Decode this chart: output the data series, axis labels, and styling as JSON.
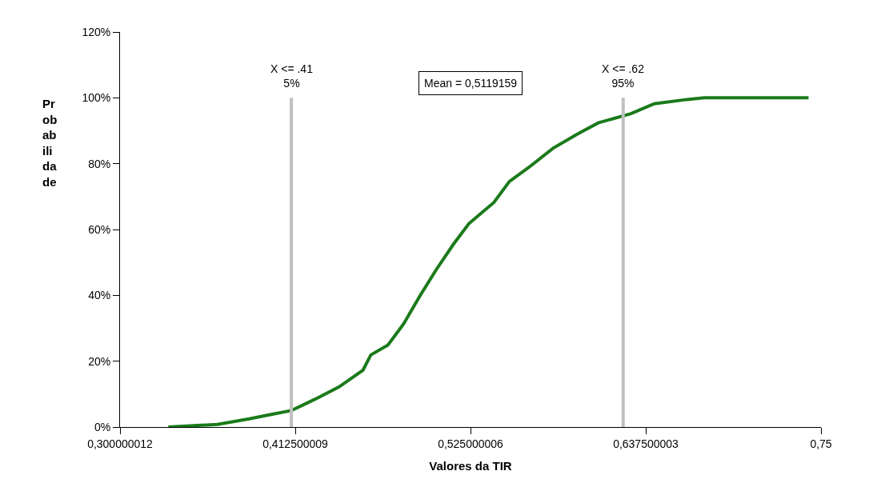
{
  "chart_data": {
    "type": "line",
    "xlabel": "Valores da TIR",
    "ylabel": "Pr\nob\nab\nili\nda\nde",
    "x": [
      0.331,
      0.3625,
      0.383,
      0.399,
      0.41,
      0.425,
      0.4406,
      0.456,
      0.461,
      0.472,
      0.482,
      0.493,
      0.503,
      0.514,
      0.524,
      0.54,
      0.55,
      0.5625,
      0.578,
      0.594,
      0.607,
      0.628,
      0.643,
      0.664,
      0.675,
      0.742
    ],
    "series": [
      {
        "color": "#1a7a1a",
        "values": [
          0,
          0.008,
          0.025,
          0.04,
          0.05,
          0.084,
          0.122,
          0.173,
          0.219,
          0.249,
          0.313,
          0.402,
          0.478,
          0.555,
          0.618,
          0.682,
          0.746,
          0.789,
          0.847,
          0.891,
          0.924,
          0.952,
          0.982,
          0.995,
          1.0,
          1.0
        ]
      }
    ],
    "xlim": [
      0.300000012,
      0.75
    ],
    "xticks": [
      {
        "value": 0.300000012,
        "label": "0,300000012"
      },
      {
        "value": 0.412500009,
        "label": "0,412500009"
      },
      {
        "value": 0.525000006,
        "label": "0,525000006"
      },
      {
        "value": 0.637500003,
        "label": "0,637500003"
      },
      {
        "value": 0.75,
        "label": "0,75"
      }
    ],
    "ylim": [
      0,
      1.2
    ],
    "yticks": [
      {
        "value": 0,
        "label": "0%"
      },
      {
        "value": 0.2,
        "label": "20%"
      },
      {
        "value": 0.4,
        "label": "40%"
      },
      {
        "value": 0.6,
        "label": "60%"
      },
      {
        "value": 0.8,
        "label": "80%"
      },
      {
        "value": 1.0,
        "label": "100%"
      },
      {
        "value": 1.2,
        "label": "120%"
      }
    ],
    "ref_lines": [
      {
        "axis": "x",
        "value": 0.41,
        "label": "X <= .41\n5%",
        "color": "#c0c0c0"
      },
      {
        "axis": "x",
        "value": 0.623,
        "label": "X <= .62\n95%",
        "color": "#c0c0c0"
      }
    ],
    "annotations": [
      "Mean = 0,5119159"
    ],
    "legend": false,
    "marker": "none",
    "line_style": "solid"
  }
}
